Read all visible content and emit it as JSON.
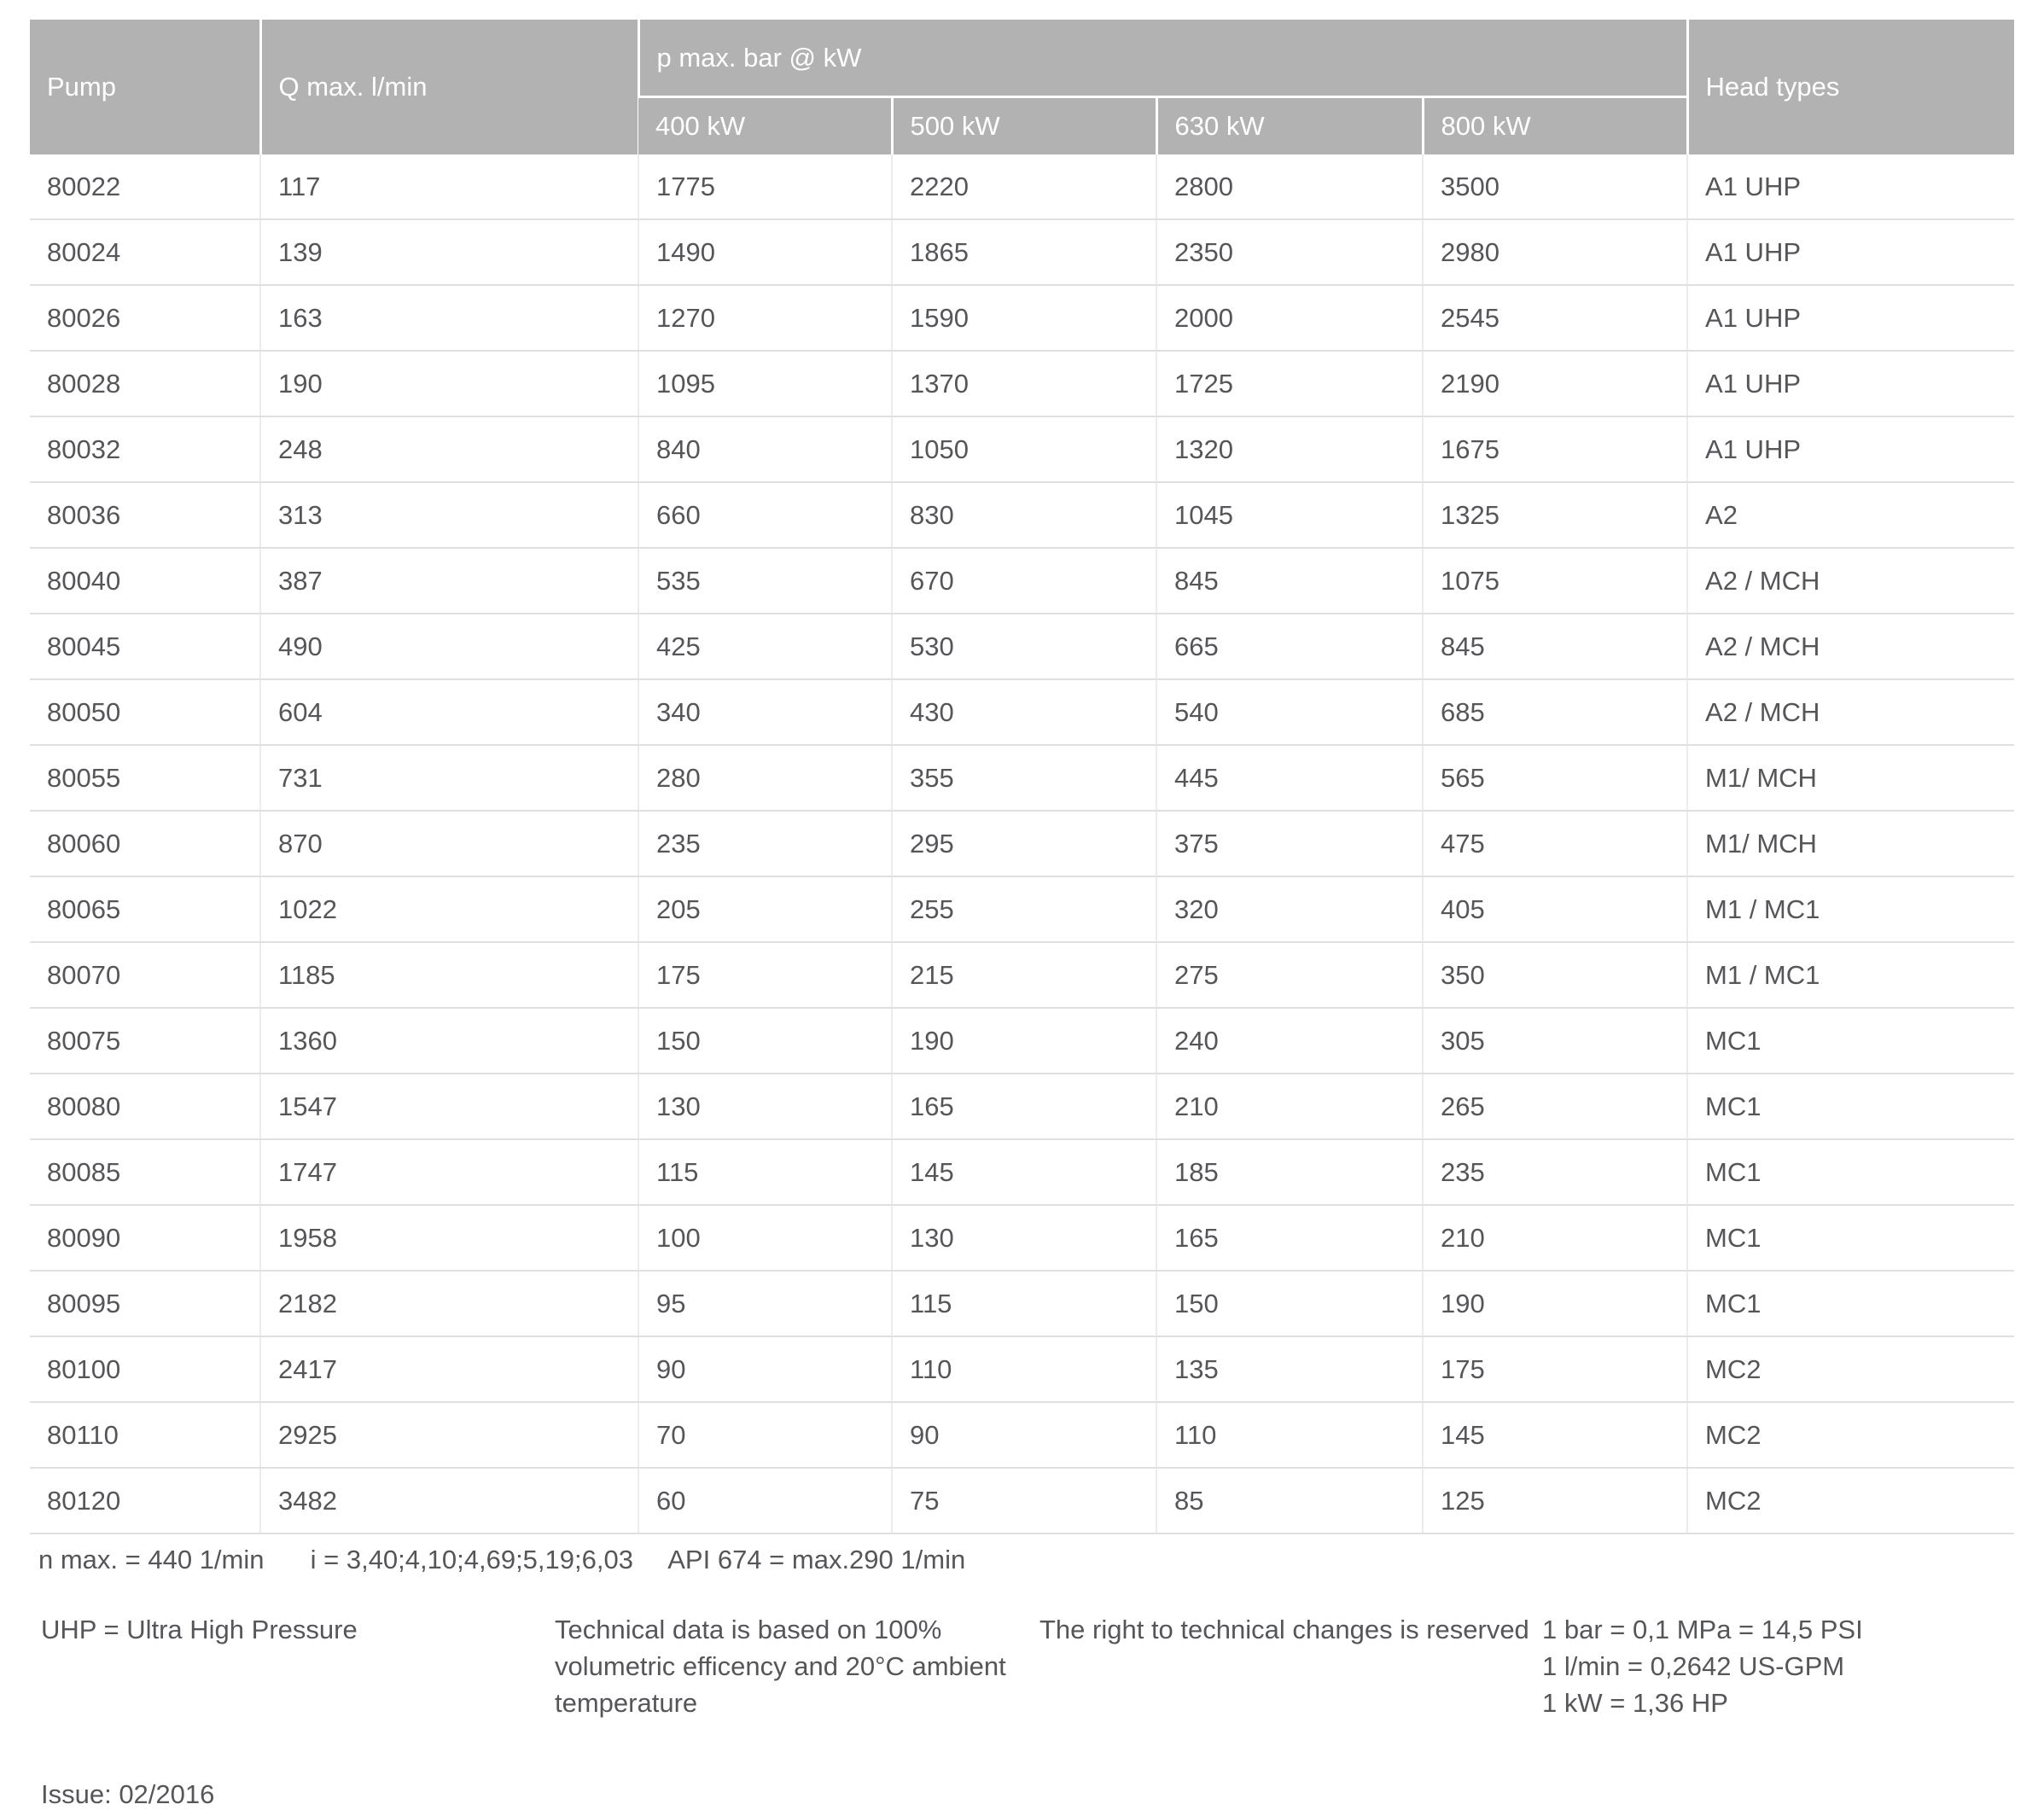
{
  "table": {
    "header": {
      "pump": "Pump",
      "q_max": "Q max. l/min",
      "p_max": "p max. bar @ kW",
      "head_types": "Head types",
      "kw_columns": [
        "400 kW",
        "500 kW",
        "630 kW",
        "800 kW"
      ]
    },
    "rows": [
      {
        "pump": "80022",
        "q_max": "117",
        "kw_400": "1775",
        "kw_500": "2220",
        "kw_630": "2800",
        "kw_800": "3500",
        "head_types": "A1 UHP"
      },
      {
        "pump": "80024",
        "q_max": "139",
        "kw_400": "1490",
        "kw_500": "1865",
        "kw_630": "2350",
        "kw_800": "2980",
        "head_types": "A1 UHP"
      },
      {
        "pump": "80026",
        "q_max": "163",
        "kw_400": "1270",
        "kw_500": "1590",
        "kw_630": "2000",
        "kw_800": "2545",
        "head_types": "A1 UHP"
      },
      {
        "pump": "80028",
        "q_max": "190",
        "kw_400": "1095",
        "kw_500": "1370",
        "kw_630": "1725",
        "kw_800": "2190",
        "head_types": "A1 UHP"
      },
      {
        "pump": "80032",
        "q_max": "248",
        "kw_400": "840",
        "kw_500": "1050",
        "kw_630": "1320",
        "kw_800": "1675",
        "head_types": "A1 UHP"
      },
      {
        "pump": "80036",
        "q_max": "313",
        "kw_400": "660",
        "kw_500": "830",
        "kw_630": "1045",
        "kw_800": "1325",
        "head_types": "A2"
      },
      {
        "pump": "80040",
        "q_max": "387",
        "kw_400": "535",
        "kw_500": "670",
        "kw_630": "845",
        "kw_800": "1075",
        "head_types": "A2 / MCH"
      },
      {
        "pump": "80045",
        "q_max": "490",
        "kw_400": "425",
        "kw_500": "530",
        "kw_630": "665",
        "kw_800": "845",
        "head_types": "A2 / MCH"
      },
      {
        "pump": "80050",
        "q_max": "604",
        "kw_400": "340",
        "kw_500": "430",
        "kw_630": "540",
        "kw_800": "685",
        "head_types": "A2 / MCH"
      },
      {
        "pump": "80055",
        "q_max": "731",
        "kw_400": "280",
        "kw_500": "355",
        "kw_630": "445",
        "kw_800": "565",
        "head_types": "M1/ MCH"
      },
      {
        "pump": "80060",
        "q_max": "870",
        "kw_400": "235",
        "kw_500": "295",
        "kw_630": "375",
        "kw_800": "475",
        "head_types": "M1/ MCH"
      },
      {
        "pump": "80065",
        "q_max": "1022",
        "kw_400": "205",
        "kw_500": "255",
        "kw_630": "320",
        "kw_800": "405",
        "head_types": "M1 / MC1"
      },
      {
        "pump": "80070",
        "q_max": "1185",
        "kw_400": "175",
        "kw_500": "215",
        "kw_630": "275",
        "kw_800": "350",
        "head_types": "M1 / MC1"
      },
      {
        "pump": "80075",
        "q_max": "1360",
        "kw_400": "150",
        "kw_500": "190",
        "kw_630": "240",
        "kw_800": "305",
        "head_types": "MC1"
      },
      {
        "pump": "80080",
        "q_max": "1547",
        "kw_400": "130",
        "kw_500": "165",
        "kw_630": "210",
        "kw_800": "265",
        "head_types": "MC1"
      },
      {
        "pump": "80085",
        "q_max": "1747",
        "kw_400": "115",
        "kw_500": "145",
        "kw_630": "185",
        "kw_800": "235",
        "head_types": "MC1"
      },
      {
        "pump": "80090",
        "q_max": "1958",
        "kw_400": "100",
        "kw_500": "130",
        "kw_630": "165",
        "kw_800": "210",
        "head_types": "MC1"
      },
      {
        "pump": "80095",
        "q_max": "2182",
        "kw_400": "95",
        "kw_500": "115",
        "kw_630": "150",
        "kw_800": "190",
        "head_types": "MC1"
      },
      {
        "pump": "80100",
        "q_max": "2417",
        "kw_400": "90",
        "kw_500": "110",
        "kw_630": "135",
        "kw_800": "175",
        "head_types": "MC2"
      },
      {
        "pump": "80110",
        "q_max": "2925",
        "kw_400": "70",
        "kw_500": "90",
        "kw_630": "110",
        "kw_800": "145",
        "head_types": "MC2"
      },
      {
        "pump": "80120",
        "q_max": "3482",
        "kw_400": "60",
        "kw_500": "75",
        "kw_630": "85",
        "kw_800": "125",
        "head_types": "MC2"
      }
    ]
  },
  "footnotes": {
    "line1": [
      "n max. = 440 1/min",
      "i = 3,40;4,10;4,69;5,19;6,03",
      "API 674 = max.290 1/min"
    ],
    "uhp": "UHP = Ultra High Pressure",
    "technical_lines": [
      "Technical data is based on 100%",
      "volumetric efficency and 20°C ambient",
      "temperature"
    ],
    "rights": "The right to technical changes is reserved",
    "conversions": [
      "1 bar = 0,1 MPa = 14,5 PSI",
      "1 l/min = 0,2642 US-GPM",
      "1 kW = 1,36 HP"
    ],
    "issue": "Issue: 02/2016"
  },
  "colors": {
    "header_bg": "#b2b2b2",
    "header_text": "#ffffff",
    "body_text": "#55565a",
    "row_border": "#e0e0e0",
    "column_border": "#ececec"
  }
}
